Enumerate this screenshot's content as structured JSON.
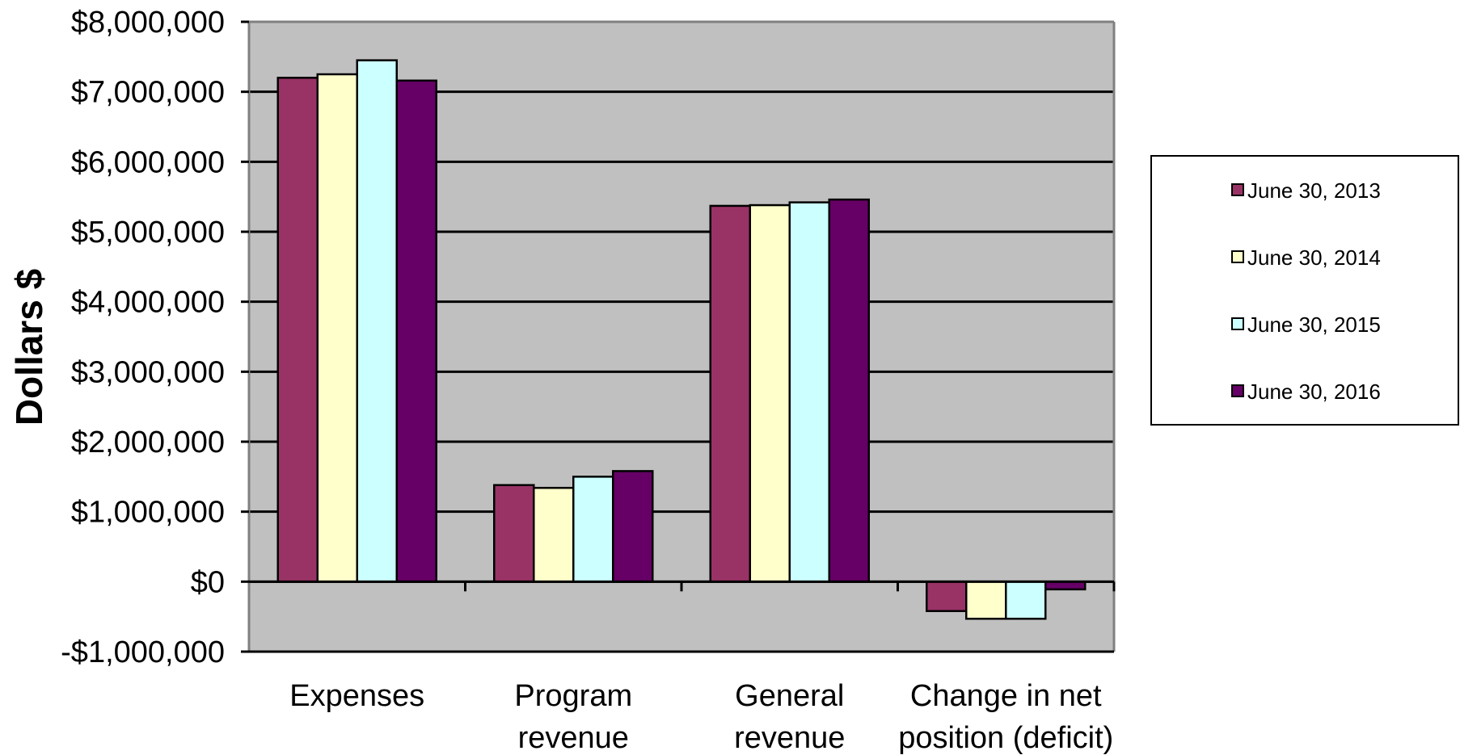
{
  "chart_data": {
    "type": "bar",
    "title": "",
    "xlabel": "",
    "ylabel": "Dollars $",
    "categories": [
      "Expenses",
      "Program revenue",
      "General revenue",
      "Change in net position (deficit)"
    ],
    "category_lines": [
      [
        "Expenses"
      ],
      [
        "Program",
        "revenue"
      ],
      [
        "General",
        "revenue"
      ],
      [
        "Change in net",
        "position (deficit)"
      ]
    ],
    "series": [
      {
        "name": "June 30, 2013",
        "color": "#993366",
        "values": [
          7200000,
          1380000,
          5370000,
          -420000
        ]
      },
      {
        "name": "June 30, 2014",
        "color": "#FFFFCC",
        "values": [
          7250000,
          1340000,
          5380000,
          -530000
        ]
      },
      {
        "name": "June 30, 2015",
        "color": "#CCFFFF",
        "values": [
          7450000,
          1500000,
          5420000,
          -530000
        ]
      },
      {
        "name": "June 30, 2016",
        "color": "#660066",
        "values": [
          7160000,
          1580000,
          5460000,
          -110000
        ]
      }
    ],
    "ylim": [
      -1000000,
      8000000
    ],
    "yticks": [
      -1000000,
      0,
      1000000,
      2000000,
      3000000,
      4000000,
      5000000,
      6000000,
      7000000,
      8000000
    ],
    "ytick_labels": [
      "-$1,000,000",
      "$0",
      "$1,000,000",
      "$2,000,000",
      "$3,000,000",
      "$4,000,000",
      "$5,000,000",
      "$6,000,000",
      "$7,000,000",
      "$8,000,000"
    ],
    "grid": true,
    "legend_position": "right",
    "plot_background": "#C0C0C0"
  }
}
